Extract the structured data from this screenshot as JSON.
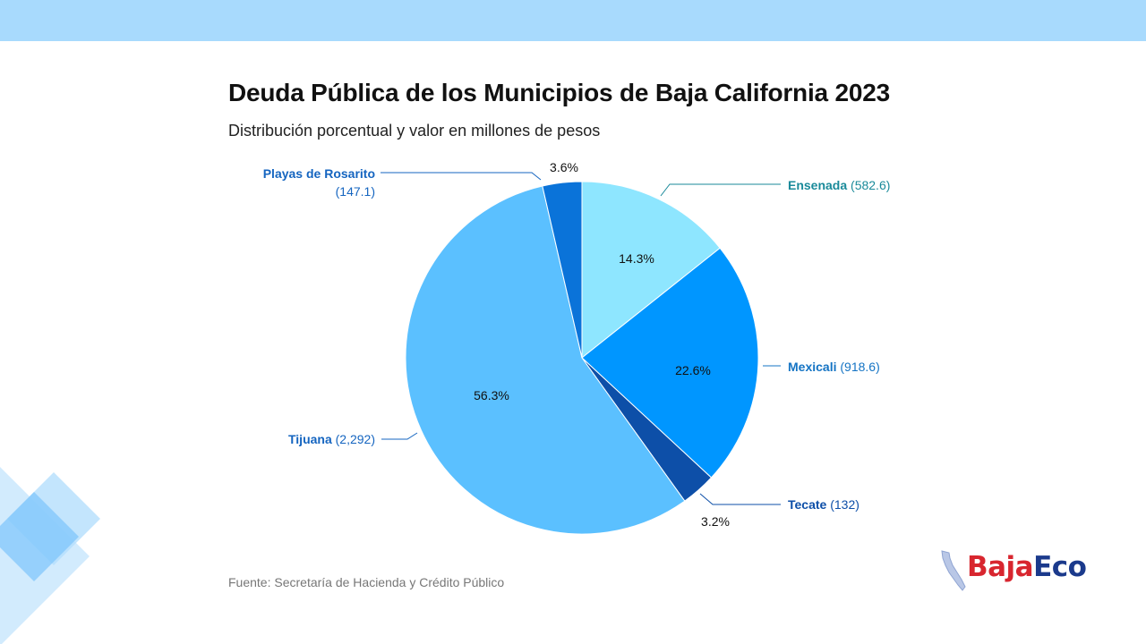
{
  "header": {
    "title": "Deuda Pública de los Municipios de Baja California 2023",
    "subtitle": "Distribución porcentual y valor en millones de pesos"
  },
  "footer": {
    "source": "Fuente: Secretaría de Hacienda y Crédito Público"
  },
  "logo": {
    "part1": "Baja",
    "part2": "Eco"
  },
  "colors": {
    "background": "#ffffff",
    "top_band": "#a8dafd",
    "label_teal": "#1a8a9a",
    "label_blue": "#1565c0"
  },
  "chart_data": {
    "type": "pie",
    "title": "Deuda Pública de los Municipios de Baja California 2023",
    "subtitle": "Distribución porcentual y valor en millones de pesos",
    "start_angle_deg": 0,
    "direction": "clockwise",
    "slices": [
      {
        "name": "Ensenada",
        "value_text": "(582.6)",
        "value": 582.6,
        "percent": 14.3,
        "percent_label": "14.3%",
        "color": "#8ee6ff",
        "label_color": "#1a8a9a"
      },
      {
        "name": "Mexicali",
        "value_text": "(918.6)",
        "value": 918.6,
        "percent": 22.6,
        "percent_label": "22.6%",
        "color": "#0096ff",
        "label_color": "#1574c4"
      },
      {
        "name": "Tecate",
        "value_text": "(132)",
        "value": 132,
        "percent": 3.2,
        "percent_label": "3.2%",
        "color": "#0d4fa8",
        "label_color": "#0d4fa8"
      },
      {
        "name": "Tijuana",
        "value_text": "(2,292)",
        "value": 2292,
        "percent": 56.3,
        "percent_label": "56.3%",
        "color": "#5bc0ff",
        "label_color": "#1565c0"
      },
      {
        "name": "Playas de Rosarito",
        "value_text": "(147.1)",
        "value": 147.1,
        "percent": 3.6,
        "percent_label": "3.6%",
        "color": "#0a73d9",
        "label_color": "#1565c0"
      }
    ]
  }
}
